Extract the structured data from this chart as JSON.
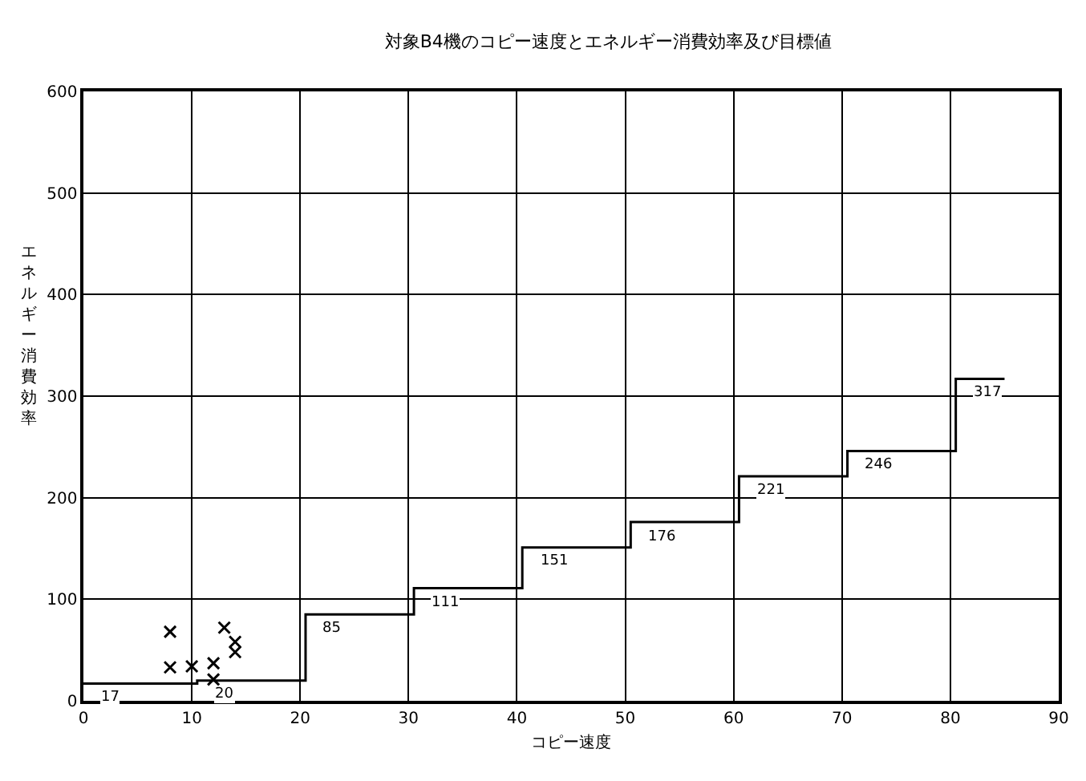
{
  "chart_data": {
    "type": "scatter",
    "title": "対象B4機のコピー速度とエネルギー消費効率及び目標値",
    "xlabel": "コピー速度",
    "ylabel": "エネルギー消費効率",
    "xlim": [
      0,
      90
    ],
    "xticks": [
      0,
      10,
      20,
      30,
      40,
      50,
      60,
      70,
      80,
      90
    ],
    "ylim": [
      0,
      600
    ],
    "yticks": [
      0,
      100,
      200,
      300,
      400,
      500,
      600
    ],
    "grid": true,
    "series": [
      {
        "type": "step",
        "color": "#000000",
        "marker": "none",
        "line_style": "solid",
        "x": [
          0,
          10.5,
          20.5,
          30.5,
          40.5,
          50.5,
          60.5,
          70.5,
          80.5,
          85
        ],
        "values": [
          17,
          20,
          85,
          111,
          151,
          176,
          221,
          246,
          317,
          317
        ],
        "value_labels": [
          "17",
          "20",
          "85",
          "111",
          "151",
          "176",
          "221",
          "246",
          "317",
          null
        ]
      },
      {
        "color": "#000000",
        "marker": "cross",
        "x": [
          8,
          8,
          10,
          12,
          12,
          13,
          14,
          14
        ],
        "values": [
          68,
          33,
          34,
          37,
          21,
          72,
          58,
          48
        ]
      }
    ]
  }
}
